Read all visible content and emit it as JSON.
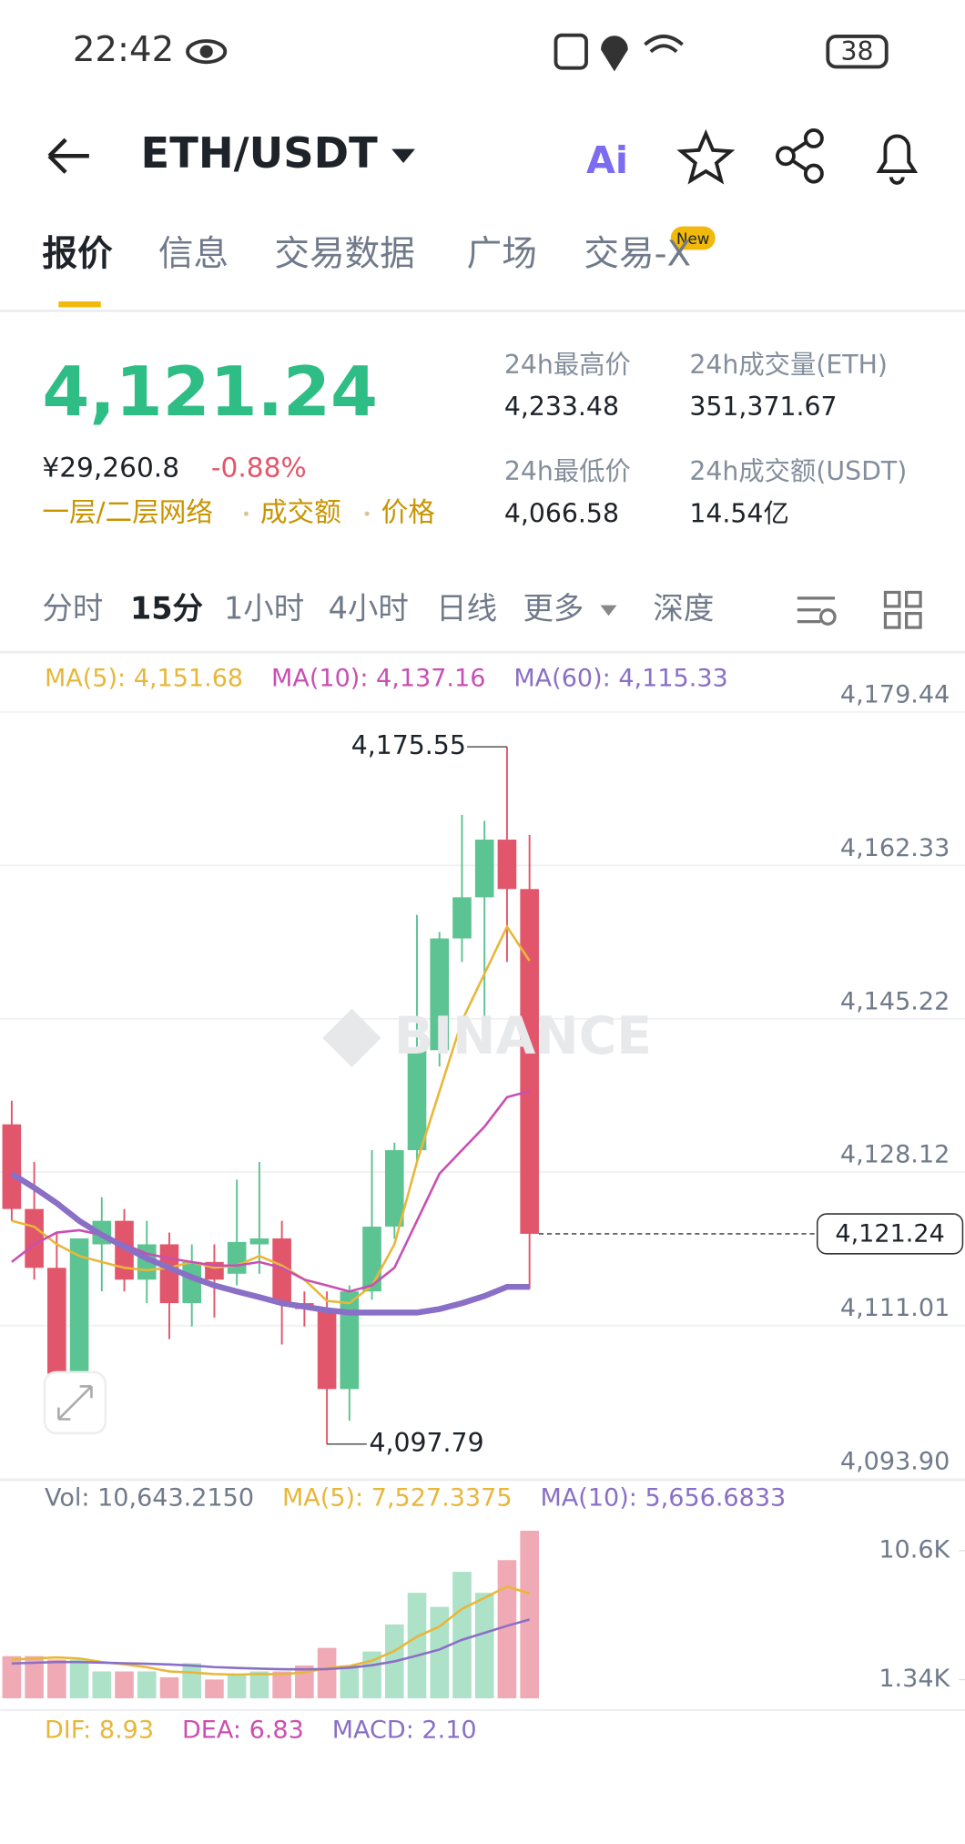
{
  "status_bar": {
    "time": "22:42",
    "battery": "38"
  },
  "header": {
    "pair": "ETH/USDT",
    "ai": "Ai"
  },
  "tabs": [
    "报价",
    "信息",
    "交易数据",
    "广场",
    "交易-X"
  ],
  "tab_badge": "New",
  "price": {
    "last": "4,121.24",
    "cny": "¥29,260.8",
    "change": "-0.88%",
    "links": [
      "一层/二层网络",
      "成交额",
      "价格"
    ]
  },
  "stats": [
    {
      "label": "24h最高价",
      "value": "4,233.48"
    },
    {
      "label": "24h成交量(ETH)",
      "value": "351,371.67"
    },
    {
      "label": "24h最低价",
      "value": "4,066.58"
    },
    {
      "label": "24h成交额(USDT)",
      "value": "14.54亿"
    }
  ],
  "intervals": [
    "分时",
    "15分",
    "1小时",
    "4小时",
    "日线",
    "更多",
    "深度"
  ],
  "chart_data": {
    "type": "candlestick",
    "watermark": "BINANCE",
    "up_color": "#5cc392",
    "down_color": "#e2566b",
    "ylim": [
      4093.9,
      4179.44
    ],
    "yticks": [
      {
        "value": 4093.9,
        "label": "4,093.90"
      },
      {
        "value": 4111.01,
        "label": "4,111.01"
      },
      {
        "value": 4128.12,
        "label": "4,128.12"
      },
      {
        "value": 4145.22,
        "label": "4,145.22"
      },
      {
        "value": 4162.33,
        "label": "4,162.33"
      },
      {
        "value": 4179.44,
        "label": "4,179.44"
      }
    ],
    "last_price": {
      "value": 4121.24,
      "label": "4,121.24"
    },
    "high_label": {
      "value": 4175.55,
      "label": "4,175.55"
    },
    "low_label": {
      "value": 4097.79,
      "label": "4,097.79"
    },
    "open": [
      4133.45,
      4124.01,
      4117.45,
      4105.64,
      4120.07,
      4122.69,
      4116.13,
      4120.07,
      4113.51,
      4118.1,
      4116.79,
      4120.07,
      4120.73,
      4113.51,
      4112.85,
      4103.93,
      4114.82,
      4122.04,
      4130.57,
      4141.72,
      4154.18,
      4158.77,
      4165.2,
      4159.69
    ],
    "high": [
      4136.08,
      4129.25,
      4121.38,
      4120.73,
      4125.32,
      4124.01,
      4122.69,
      4121.38,
      4120.07,
      4120.07,
      4127.29,
      4129.25,
      4122.69,
      4114.82,
      4114.82,
      4115.48,
      4130.57,
      4131.4,
      4156.81,
      4154.9,
      4167.96,
      4167.3,
      4175.55,
      4165.73
    ],
    "low": [
      4122.69,
      4116.13,
      4105.4,
      4105.4,
      4114.82,
      4114.82,
      4113.51,
      4109.5,
      4110.9,
      4111.9,
      4115.48,
      4116.79,
      4108.9,
      4110.9,
      4097.79,
      4100.39,
      4113.9,
      4120.7,
      4129.25,
      4139.9,
      4151.56,
      4143.69,
      4151.56,
      4115.08
    ],
    "close": [
      4124.01,
      4117.45,
      4105.64,
      4120.73,
      4122.69,
      4116.13,
      4120.07,
      4113.51,
      4118.1,
      4116.13,
      4120.33,
      4120.73,
      4113.51,
      4112.85,
      4103.93,
      4114.82,
      4122.04,
      4130.57,
      4141.72,
      4154.18,
      4158.77,
      4165.2,
      4159.69,
      4121.24
    ],
    "ma": [
      {
        "name": "MA(5)",
        "label": "MA(5): 4,151.68",
        "color": "#e8b73a",
        "values": [
          4122.69,
          4122.04,
          4120.07,
          4118.76,
          4118.1,
          4117.45,
          4117.18,
          4117.45,
          4118.1,
          4117.45,
          4117.71,
          4118.76,
          4117.71,
          4116.13,
          4113.77,
          4113.51,
          4115.48,
          4120.07,
          4129.25,
          4137.13,
          4145.0,
          4150.25,
          4155.49,
          4151.68
        ]
      },
      {
        "name": "MA(10)",
        "label": "MA(10): 4,137.16",
        "color": "#c94fb3",
        "values": [
          4118.1,
          4120.07,
          4121.38,
          4121.64,
          4121.12,
          4120.07,
          4119.02,
          4118.5,
          4118.1,
          4117.71,
          4117.71,
          4118.1,
          4117.45,
          4116.13,
          4115.48,
          4114.82,
          4115.48,
          4117.45,
          4122.69,
          4127.94,
          4130.57,
          4133.19,
          4136.47,
          4137.16
        ]
      },
      {
        "name": "MA(60)",
        "label": "MA(60): 4,115.33",
        "color": "#8a6fc6",
        "values": [
          4127.94,
          4126.37,
          4124.66,
          4122.69,
          4121.12,
          4119.81,
          4118.5,
          4117.45,
          4116.4,
          4115.48,
          4114.82,
          4114.17,
          4113.51,
          4113.12,
          4112.72,
          4112.46,
          4112.46,
          4112.46,
          4112.46,
          4112.85,
          4113.51,
          4114.3,
          4115.33,
          4115.33
        ]
      }
    ],
    "volume": {
      "legend": "Vol: 10,643.2150",
      "ylim": [
        0,
        13300
      ],
      "yticks": [
        {
          "value": 1340,
          "label": "1.34K"
        },
        {
          "value": 10600,
          "label": "10.6K"
        }
      ],
      "values": [
        3030,
        3030,
        2780,
        2780,
        1930,
        1930,
        1930,
        1510,
        2520,
        1350,
        1680,
        1930,
        1930,
        2360,
        3620,
        2360,
        3360,
        5300,
        7570,
        6560,
        9080,
        7570,
        9920,
        12030
      ],
      "ma": [
        {
          "name": "MA(5)",
          "label": "MA(5): 7,527.3375",
          "color": "#e8b73a",
          "values": [
            2780,
            2860,
            2940,
            2860,
            2610,
            2440,
            2230,
            1930,
            1850,
            1740,
            1700,
            1740,
            1730,
            1850,
            2170,
            2320,
            2690,
            3400,
            4430,
            5150,
            6420,
            7210,
            8020,
            7527.3375
          ]
        },
        {
          "name": "MA(10)",
          "label": "MA(10): 5,656.6833",
          "color": "#8a6fc6",
          "values": [
            2500,
            2550,
            2600,
            2600,
            2560,
            2520,
            2480,
            2430,
            2350,
            2240,
            2180,
            2130,
            2090,
            2080,
            2100,
            2200,
            2370,
            2650,
            3060,
            3500,
            4200,
            4700,
            5200,
            5656.6833
          ]
        }
      ]
    },
    "macd": {
      "legend": [
        {
          "label": "DIF: 8.93",
          "color": "#e8b73a"
        },
        {
          "label": "DEA: 6.83",
          "color": "#c94fb3"
        },
        {
          "label": "MACD: 2.10",
          "color": "#8a6fc6"
        }
      ]
    }
  }
}
